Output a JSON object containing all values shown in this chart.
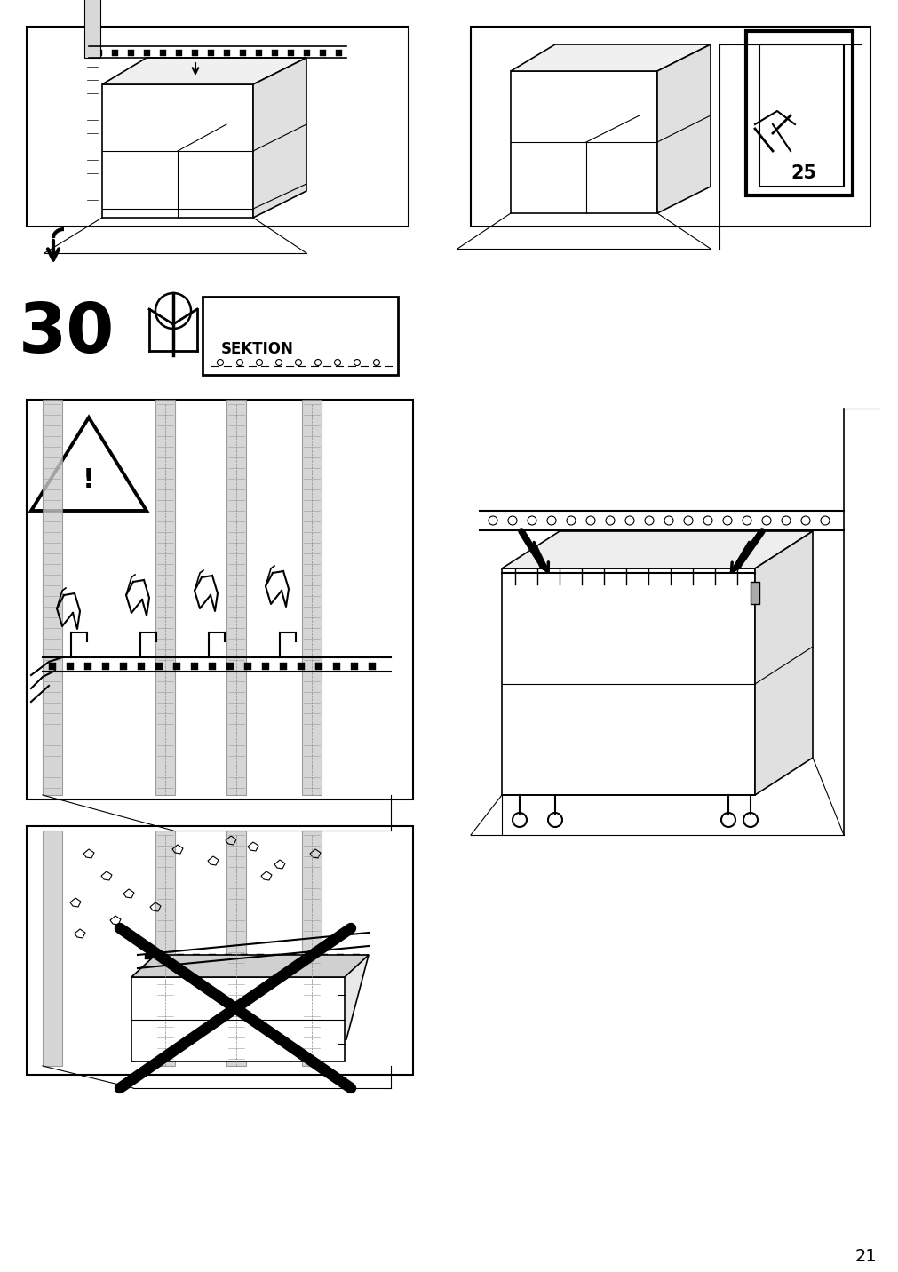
{
  "page_number": "21",
  "step_number": "30",
  "background_color": "#ffffff",
  "line_color": "#000000",
  "gray_color": "#aaaaaa",
  "light_gray": "#cccccc"
}
